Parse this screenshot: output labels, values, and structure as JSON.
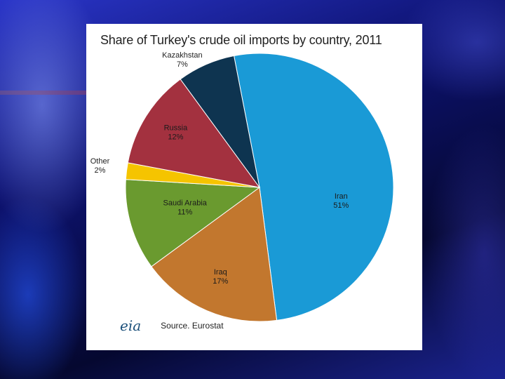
{
  "chart_data": {
    "type": "pie",
    "title": "Share of Turkey's crude oil imports by country, 2011",
    "slices": [
      {
        "label": "Iran",
        "value": 51,
        "value_label": "51%",
        "color": "#1a9ad6"
      },
      {
        "label": "Iraq",
        "value": 17,
        "value_label": "17%",
        "color": "#c2772e"
      },
      {
        "label": "Saudi Arabia",
        "value": 11,
        "value_label": "11%",
        "color": "#6a9a2f"
      },
      {
        "label": "Other",
        "value": 2,
        "value_label": "2%",
        "color": "#f5c400"
      },
      {
        "label": "Russia",
        "value": 12,
        "value_label": "12%",
        "color": "#a3313f"
      },
      {
        "label": "Kazakhstan",
        "value": 7,
        "value_label": "7%",
        "color": "#0e3450"
      }
    ]
  },
  "footer": {
    "logo_text": "eia",
    "source": "Source. Eurostat"
  }
}
